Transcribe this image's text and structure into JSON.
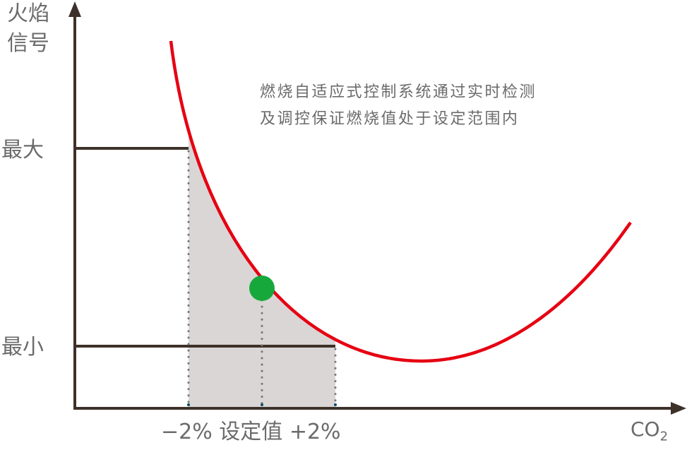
{
  "y_axis_label": [
    "火焰",
    "信号"
  ],
  "x_axis_label": {
    "main": "CO",
    "sub": "2"
  },
  "level_max": "最大",
  "level_min": "最小",
  "annotation": [
    "燃烧自适应式控制系统通过实时检测",
    "及调控保证燃烧值处于设定范围内"
  ],
  "x_marks": {
    "minus": "−2%",
    "setpoint": "设定值",
    "plus": "+2%"
  },
  "colors": {
    "curve": "#e60012",
    "setpoint_dot": "#17a83c",
    "axis": "#3e3129",
    "band": "#d9d6d5",
    "guide": "#777777"
  }
}
